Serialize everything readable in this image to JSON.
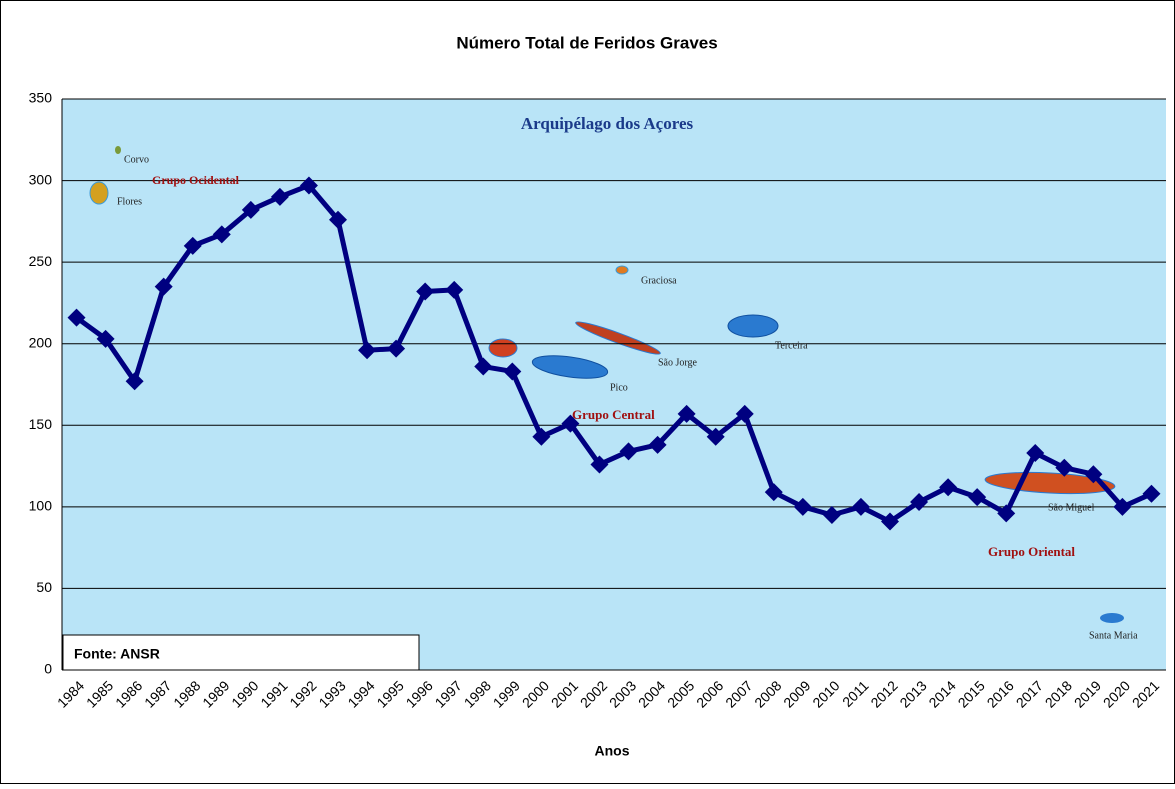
{
  "chart_data": {
    "type": "line",
    "title": "Número Total de Feridos Graves",
    "x_label": "Anos",
    "source": "Fonte: ANSR",
    "map_labels": [
      "Arquipélago dos Açores",
      "Corvo",
      "Grupo Ocidental",
      "Flores",
      "Graciosa",
      "Terceira",
      "São Jorge",
      "Pico",
      "Grupo Central",
      "São Miguel",
      "Grupo Oriental",
      "Santa Maria"
    ],
    "categories": [
      "1984",
      "1985",
      "1986",
      "1987",
      "1988",
      "1989",
      "1990",
      "1991",
      "1992",
      "1993",
      "1994",
      "1995",
      "1996",
      "1997",
      "1998",
      "1999",
      "2000",
      "2001",
      "2002",
      "2003",
      "2004",
      "2005",
      "2006",
      "2007",
      "2008",
      "2009",
      "2010",
      "2011",
      "2012",
      "2013",
      "2014",
      "2015",
      "2016",
      "2017",
      "2018",
      "2019",
      "2020",
      "2021"
    ],
    "values": [
      216,
      203,
      177,
      235,
      260,
      267,
      282,
      290,
      297,
      276,
      196,
      197,
      232,
      233,
      186,
      183,
      143,
      151,
      126,
      134,
      138,
      157,
      143,
      157,
      109,
      100,
      95,
      100,
      91,
      103,
      112,
      106,
      96,
      133,
      124,
      120,
      100,
      108
    ],
    "color": "#000080",
    "ylim": [
      0,
      350
    ],
    "yticks": [
      0,
      50,
      100,
      150,
      200,
      250,
      300,
      350
    ],
    "grid": true
  }
}
